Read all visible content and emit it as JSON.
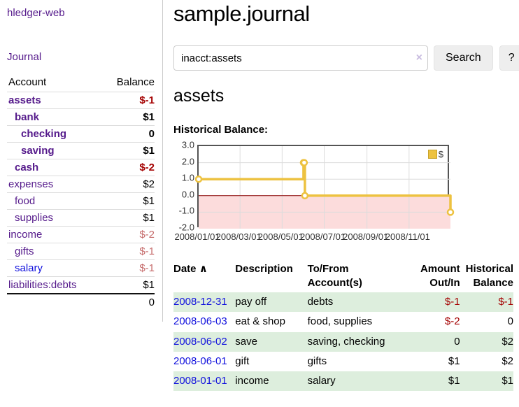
{
  "brand": "hledger-web",
  "nav": {
    "journal": "Journal"
  },
  "sidebar": {
    "col_account": "Account",
    "col_balance": "Balance",
    "accounts": [
      {
        "name": "assets",
        "depth": 1,
        "balance": "$-1",
        "bold": true,
        "neg": "strong",
        "link": "purple"
      },
      {
        "name": "bank",
        "depth": 2,
        "balance": "$1",
        "bold": true,
        "neg": "none",
        "link": "purple"
      },
      {
        "name": "checking",
        "depth": 3,
        "balance": "0",
        "bold": true,
        "neg": "none",
        "link": "purple"
      },
      {
        "name": "saving",
        "depth": 3,
        "balance": "$1",
        "bold": true,
        "neg": "none",
        "link": "purple"
      },
      {
        "name": "cash",
        "depth": 2,
        "balance": "$-2",
        "bold": true,
        "neg": "strong",
        "link": "purple"
      },
      {
        "name": "expenses",
        "depth": 1,
        "balance": "$2",
        "bold": false,
        "neg": "none",
        "link": "purple"
      },
      {
        "name": "food",
        "depth": 2,
        "balance": "$1",
        "bold": false,
        "neg": "none",
        "link": "purple"
      },
      {
        "name": "supplies",
        "depth": 2,
        "balance": "$1",
        "bold": false,
        "neg": "none",
        "link": "purple"
      },
      {
        "name": "income",
        "depth": 1,
        "balance": "$-2",
        "bold": false,
        "neg": "faded",
        "link": "purple"
      },
      {
        "name": "gifts",
        "depth": 2,
        "balance": "$-1",
        "bold": false,
        "neg": "faded",
        "link": "purple"
      },
      {
        "name": "salary",
        "depth": 2,
        "balance": "$-1",
        "bold": false,
        "neg": "faded",
        "link": "blue"
      },
      {
        "name": "liabilities:debts",
        "depth": 1,
        "balance": "$1",
        "bold": false,
        "neg": "none",
        "link": "purple"
      }
    ],
    "total": "0"
  },
  "header": {
    "title": "sample.journal"
  },
  "search": {
    "value": "inacct:assets",
    "clear_icon": "×",
    "search_button": "Search",
    "help_button": "?"
  },
  "account_page": {
    "heading": "assets",
    "chart_title": "Historical Balance:"
  },
  "chart_data": {
    "type": "line",
    "step": true,
    "title": "Historical Balance:",
    "series": [
      {
        "name": "$",
        "color": "#edc240",
        "points": [
          [
            "2008-01-01",
            1
          ],
          [
            "2008-06-01",
            2
          ],
          [
            "2008-06-02",
            2
          ],
          [
            "2008-06-03",
            0
          ],
          [
            "2008-12-31",
            -1
          ]
        ]
      }
    ],
    "ylim": [
      -2,
      3
    ],
    "yticks": [
      "3.0",
      "2.0",
      "1.0",
      "0.0",
      "-1.0",
      "-2.0"
    ],
    "ytick_values": [
      3,
      2,
      1,
      0,
      -1,
      -2
    ],
    "xticks": [
      "2008/01/01",
      "2008/03/01",
      "2008/05/01",
      "2008/07/01",
      "2008/09/01",
      "2008/11/01"
    ],
    "x_range": [
      "2008-01-01",
      "2008-12-31"
    ],
    "grid": true,
    "grid_color": "#dcdcdc",
    "negative_fill": "#fcdcdc",
    "zero_line_color": "#8b0000",
    "legend": {
      "label": "$",
      "position": "top-right"
    }
  },
  "register": {
    "headers": {
      "date": "Date",
      "sort_icon": "∧",
      "description": "Description",
      "accounts": "To/From Account(s)",
      "amount": "Amount Out/In",
      "balance": "Historical Balance"
    },
    "rows": [
      {
        "date": "2008-12-31",
        "description": "pay off",
        "accounts": "debts",
        "amount": "$-1",
        "balance": "$-1",
        "amount_neg": true,
        "balance_neg": true
      },
      {
        "date": "2008-06-03",
        "description": "eat & shop",
        "accounts": "food, supplies",
        "amount": "$-2",
        "balance": "0",
        "amount_neg": true,
        "balance_neg": false
      },
      {
        "date": "2008-06-02",
        "description": "save",
        "accounts": "saving, checking",
        "amount": "0",
        "balance": "$2",
        "amount_neg": false,
        "balance_neg": false
      },
      {
        "date": "2008-06-01",
        "description": "gift",
        "accounts": "gifts",
        "amount": "$1",
        "balance": "$2",
        "amount_neg": false,
        "balance_neg": false
      },
      {
        "date": "2008-01-01",
        "description": "income",
        "accounts": "salary",
        "amount": "$1",
        "balance": "$1",
        "amount_neg": false,
        "balance_neg": false
      }
    ]
  }
}
